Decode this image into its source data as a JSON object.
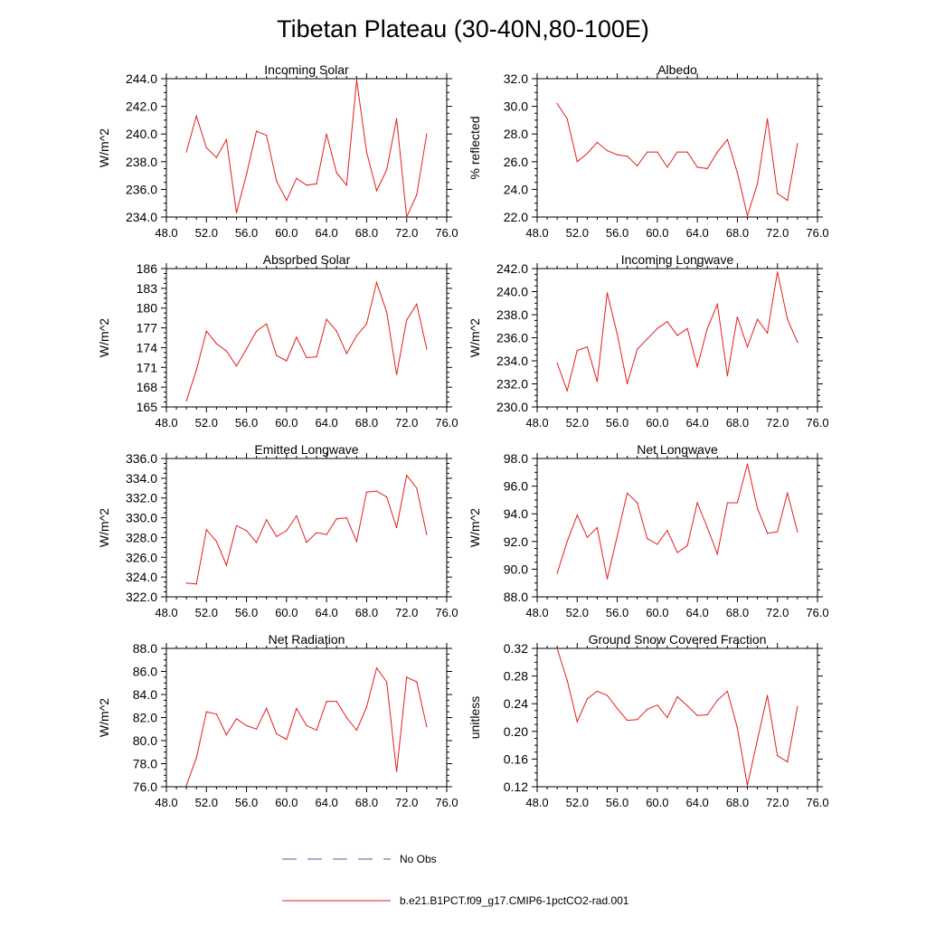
{
  "title": "Tibetan Plateau (30-40N,80-100E)",
  "legend": {
    "items": [
      {
        "label": "No Obs",
        "color": "#5a5aa0",
        "dash": true
      },
      {
        "label": "b.e21.B1PCT.f09_g17.CMIP6-1pctCO2-rad.001",
        "color": "#e51c1c",
        "dash": false
      }
    ]
  },
  "line_color": "#e51c1c",
  "chart_data": [
    {
      "type": "line",
      "title": "Incoming Solar",
      "ylabel": "W/m^2",
      "xlim": [
        48,
        76
      ],
      "ylim": [
        234,
        244
      ],
      "xticks": [
        "48.0",
        "52.0",
        "56.0",
        "60.0",
        "64.0",
        "68.0",
        "72.0",
        "76.0"
      ],
      "yticks": [
        "234.0",
        "236.0",
        "238.0",
        "240.0",
        "242.0",
        "244.0"
      ],
      "x": [
        50,
        51,
        52,
        53,
        54,
        55,
        56,
        57,
        58,
        59,
        60,
        61,
        62,
        63,
        64,
        65,
        66,
        67,
        68,
        69,
        70,
        71,
        72,
        73,
        74
      ],
      "values": [
        238.7,
        241.3,
        239.0,
        238.3,
        239.6,
        234.3,
        237.1,
        240.2,
        239.9,
        236.6,
        235.2,
        236.8,
        236.3,
        236.4,
        240.0,
        237.2,
        236.3,
        243.9,
        238.7,
        235.9,
        237.4,
        241.1,
        234.0,
        235.6,
        240.0
      ]
    },
    {
      "type": "line",
      "title": "Albedo",
      "ylabel": "% reflected",
      "xlim": [
        48,
        76
      ],
      "ylim": [
        22,
        32
      ],
      "xticks": [
        "48.0",
        "52.0",
        "56.0",
        "60.0",
        "64.0",
        "68.0",
        "72.0",
        "76.0"
      ],
      "yticks": [
        "22.0",
        "24.0",
        "26.0",
        "28.0",
        "30.0",
        "32.0"
      ],
      "x": [
        50,
        51,
        52,
        53,
        54,
        55,
        56,
        57,
        58,
        59,
        60,
        61,
        62,
        63,
        64,
        65,
        66,
        67,
        68,
        69,
        70,
        71,
        72,
        73,
        74
      ],
      "values": [
        30.2,
        29.1,
        26.0,
        26.6,
        27.4,
        26.8,
        26.5,
        26.4,
        25.7,
        26.7,
        26.7,
        25.6,
        26.7,
        26.7,
        25.6,
        25.5,
        26.7,
        27.6,
        25.2,
        22.1,
        24.4,
        29.1,
        23.7,
        23.2,
        27.3
      ]
    },
    {
      "type": "line",
      "title": "Absorbed Solar",
      "ylabel": "W/m^2",
      "xlim": [
        48,
        76
      ],
      "ylim": [
        165,
        186
      ],
      "xticks": [
        "48.0",
        "52.0",
        "56.0",
        "60.0",
        "64.0",
        "68.0",
        "72.0",
        "76.0"
      ],
      "yticks": [
        "165",
        "168",
        "171",
        "174",
        "177",
        "180",
        "183",
        "186"
      ],
      "x": [
        50,
        51,
        52,
        53,
        54,
        55,
        56,
        57,
        58,
        59,
        60,
        61,
        62,
        63,
        64,
        65,
        66,
        67,
        68,
        69,
        70,
        71,
        72,
        73,
        74
      ],
      "values": [
        165.9,
        170.6,
        176.5,
        174.6,
        173.5,
        171.2,
        173.8,
        176.5,
        177.6,
        172.8,
        172.0,
        175.6,
        172.5,
        172.6,
        178.3,
        176.5,
        173.1,
        175.8,
        177.6,
        183.9,
        179.4,
        169.9,
        178.2,
        180.6,
        173.8
      ]
    },
    {
      "type": "line",
      "title": "Incoming Longwave",
      "ylabel": "W/m^2",
      "xlim": [
        48,
        76
      ],
      "ylim": [
        230,
        242
      ],
      "xticks": [
        "48.0",
        "52.0",
        "56.0",
        "60.0",
        "64.0",
        "68.0",
        "72.0",
        "76.0"
      ],
      "yticks": [
        "230.0",
        "232.0",
        "234.0",
        "236.0",
        "238.0",
        "240.0",
        "242.0"
      ],
      "x": [
        50,
        51,
        52,
        53,
        54,
        55,
        56,
        57,
        58,
        59,
        60,
        61,
        62,
        63,
        64,
        65,
        66,
        67,
        68,
        69,
        70,
        71,
        72,
        73,
        74
      ],
      "values": [
        233.8,
        231.4,
        234.9,
        235.2,
        232.2,
        239.9,
        236.3,
        232.0,
        235.0,
        235.9,
        236.8,
        237.4,
        236.2,
        236.8,
        233.5,
        236.8,
        238.9,
        232.7,
        237.8,
        235.2,
        237.6,
        236.4,
        241.7,
        237.6,
        235.6
      ]
    },
    {
      "type": "line",
      "title": "Emitted Longwave",
      "ylabel": "W/m^2",
      "xlim": [
        48,
        76
      ],
      "ylim": [
        322,
        336
      ],
      "xticks": [
        "48.0",
        "52.0",
        "56.0",
        "60.0",
        "64.0",
        "68.0",
        "72.0",
        "76.0"
      ],
      "yticks": [
        "322.0",
        "324.0",
        "326.0",
        "328.0",
        "330.0",
        "332.0",
        "334.0",
        "336.0"
      ],
      "x": [
        50,
        51,
        52,
        53,
        54,
        55,
        56,
        57,
        58,
        59,
        60,
        61,
        62,
        63,
        64,
        65,
        66,
        67,
        68,
        69,
        70,
        71,
        72,
        73,
        74
      ],
      "values": [
        323.4,
        323.3,
        328.8,
        327.6,
        325.2,
        329.2,
        328.7,
        327.5,
        329.8,
        328.1,
        328.7,
        330.2,
        327.5,
        328.5,
        328.3,
        329.9,
        330.0,
        327.6,
        332.6,
        332.7,
        332.1,
        329.0,
        334.3,
        333.0,
        328.3
      ]
    },
    {
      "type": "line",
      "title": "Net Longwave",
      "ylabel": "W/m^2",
      "xlim": [
        48,
        76
      ],
      "ylim": [
        88,
        98
      ],
      "xticks": [
        "48.0",
        "52.0",
        "56.0",
        "60.0",
        "64.0",
        "68.0",
        "72.0",
        "76.0"
      ],
      "yticks": [
        "88.0",
        "90.0",
        "92.0",
        "94.0",
        "96.0",
        "98.0"
      ],
      "x": [
        50,
        51,
        52,
        53,
        54,
        55,
        56,
        57,
        58,
        59,
        60,
        61,
        62,
        63,
        64,
        65,
        66,
        67,
        68,
        69,
        70,
        71,
        72,
        73,
        74
      ],
      "values": [
        89.7,
        92.0,
        93.9,
        92.3,
        93.0,
        89.3,
        92.4,
        95.5,
        94.8,
        92.2,
        91.8,
        92.8,
        91.2,
        91.7,
        94.8,
        93.0,
        91.1,
        94.8,
        94.8,
        97.6,
        94.4,
        92.6,
        92.7,
        95.5,
        92.7
      ]
    },
    {
      "type": "line",
      "title": "Net Radiation",
      "ylabel": "W/m^2",
      "xlim": [
        48,
        76
      ],
      "ylim": [
        76,
        88
      ],
      "xticks": [
        "48.0",
        "52.0",
        "56.0",
        "60.0",
        "64.0",
        "68.0",
        "72.0",
        "76.0"
      ],
      "yticks": [
        "76.0",
        "78.0",
        "80.0",
        "82.0",
        "84.0",
        "86.0",
        "88.0"
      ],
      "x": [
        50,
        51,
        52,
        53,
        54,
        55,
        56,
        57,
        58,
        59,
        60,
        61,
        62,
        63,
        64,
        65,
        66,
        67,
        68,
        69,
        70,
        71,
        72,
        73,
        74
      ],
      "values": [
        76.1,
        78.5,
        82.5,
        82.3,
        80.5,
        81.9,
        81.3,
        81.0,
        82.8,
        80.6,
        80.1,
        82.8,
        81.3,
        80.9,
        83.4,
        83.4,
        82.0,
        80.9,
        82.9,
        86.3,
        85.1,
        77.3,
        85.5,
        85.1,
        81.2
      ]
    },
    {
      "type": "line",
      "title": "Ground Snow Covered Fraction",
      "ylabel": "unitless",
      "xlim": [
        48,
        76
      ],
      "ylim": [
        0.12,
        0.32
      ],
      "xticks": [
        "48.0",
        "52.0",
        "56.0",
        "60.0",
        "64.0",
        "68.0",
        "72.0",
        "76.0"
      ],
      "yticks": [
        "0.12",
        "0.16",
        "0.20",
        "0.24",
        "0.28",
        "0.32"
      ],
      "x": [
        50,
        51,
        52,
        53,
        54,
        55,
        56,
        57,
        58,
        59,
        60,
        61,
        62,
        63,
        64,
        65,
        66,
        67,
        68,
        69,
        70,
        71,
        72,
        73,
        74
      ],
      "values": [
        0.32,
        0.274,
        0.214,
        0.247,
        0.258,
        0.252,
        0.233,
        0.216,
        0.217,
        0.232,
        0.238,
        0.22,
        0.25,
        0.237,
        0.223,
        0.224,
        0.245,
        0.258,
        0.205,
        0.122,
        0.188,
        0.252,
        0.165,
        0.156,
        0.236
      ]
    }
  ]
}
